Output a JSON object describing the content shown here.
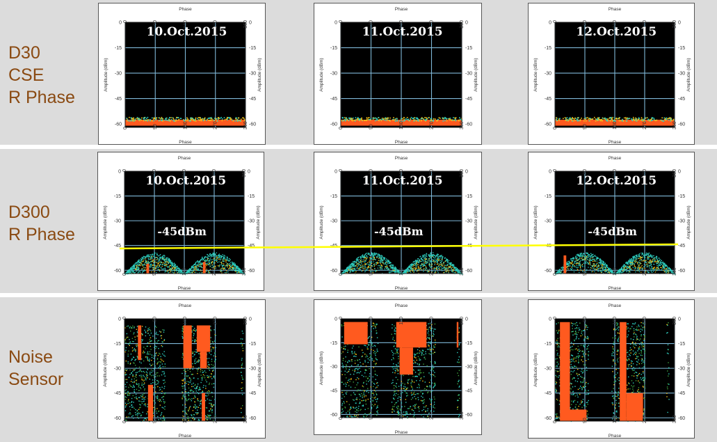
{
  "colors": {
    "band": "#dcdcdc",
    "row_label": "#8a4a12",
    "plot_bg": "#000000",
    "grid": "#7fb8d8",
    "hot": "#ff5a1f",
    "warm": "#f2c21a",
    "cool": "#2fd0c0",
    "reference_line": "#ffff00"
  },
  "rows": [
    {
      "label_lines": [
        "D30",
        "CSE",
        "R Phase"
      ]
    },
    {
      "label_lines": [
        "D300",
        "R Phase"
      ]
    },
    {
      "label_lines": [
        "Noise",
        "Sensor"
      ]
    }
  ],
  "reference_line_label": "-45dBm",
  "chart_data": [
    {
      "type": "scatter",
      "row": 0,
      "col": 0,
      "date": "10.Oct.2015",
      "pattern": "noise_floor",
      "xlabel": "Phase",
      "ylabel": "Amplitude (dBm)",
      "xticks": [
        "0",
        "90",
        "180",
        "270",
        "360"
      ],
      "yticks": [
        "0",
        "-15",
        "-30",
        "-45",
        "-60"
      ],
      "xlim": [
        0,
        360
      ],
      "ylim": [
        -62,
        0
      ],
      "grid": true,
      "noise_floor_dbm": -58
    },
    {
      "type": "scatter",
      "row": 0,
      "col": 1,
      "date": "11.Oct.2015",
      "pattern": "noise_floor",
      "xlabel": "Phase",
      "ylabel": "Amplitude (dBm)",
      "xticks": [
        "0",
        "90",
        "180",
        "270",
        "360"
      ],
      "yticks": [
        "0",
        "-15",
        "-30",
        "-45",
        "-60"
      ],
      "xlim": [
        0,
        360
      ],
      "ylim": [
        -62,
        0
      ],
      "grid": true,
      "noise_floor_dbm": -58
    },
    {
      "type": "scatter",
      "row": 0,
      "col": 2,
      "date": "12.Oct.2015",
      "pattern": "noise_floor",
      "xlabel": "Phase",
      "ylabel": "Amplitude (dBm)",
      "xticks": [
        "0",
        "90",
        "180",
        "270",
        "360"
      ],
      "yticks": [
        "0",
        "-15",
        "-30",
        "-45",
        "-60"
      ],
      "xlim": [
        0,
        360
      ],
      "ylim": [
        -62,
        0
      ],
      "grid": true,
      "noise_floor_dbm": -58
    },
    {
      "type": "scatter",
      "row": 1,
      "col": 0,
      "date": "10.Oct.2015",
      "pattern": "twin_domes",
      "xlabel": "Phase",
      "ylabel": "Amplitude (dBm)",
      "xticks": [
        "0",
        "90",
        "180",
        "270",
        "360"
      ],
      "yticks": [
        "0",
        "-15",
        "-30",
        "-45",
        "-60"
      ],
      "xlim": [
        0,
        360
      ],
      "ylim": [
        -62,
        0
      ],
      "grid": true,
      "dome_peak_dbm": -49,
      "reference_dbm": -45,
      "hot_spots": [
        {
          "phase": 70,
          "top": -56
        },
        {
          "phase": 240,
          "top": -55
        }
      ]
    },
    {
      "type": "scatter",
      "row": 1,
      "col": 1,
      "date": "11.Oct.2015",
      "pattern": "twin_domes",
      "xlabel": "Phase",
      "ylabel": "Amplitude (dBm)",
      "xticks": [
        "0",
        "90",
        "180",
        "270",
        "360"
      ],
      "yticks": [
        "0",
        "-15",
        "-30",
        "-45",
        "-60"
      ],
      "xlim": [
        0,
        360
      ],
      "ylim": [
        -62,
        0
      ],
      "grid": true,
      "dome_peak_dbm": -49,
      "reference_dbm": -45,
      "hot_spots": []
    },
    {
      "type": "scatter",
      "row": 1,
      "col": 2,
      "date": "12.Oct.2015",
      "pattern": "twin_domes",
      "xlabel": "Phase",
      "ylabel": "Amplitude (dBm)",
      "xticks": [
        "0",
        "90",
        "180",
        "270",
        "360"
      ],
      "yticks": [
        "0",
        "-15",
        "-30",
        "-45",
        "-60"
      ],
      "xlim": [
        0,
        360
      ],
      "ylim": [
        -62,
        0
      ],
      "grid": true,
      "dome_peak_dbm": -49,
      "reference_dbm": -45,
      "hot_spots": [
        {
          "phase": 30,
          "top": -51
        }
      ]
    },
    {
      "type": "scatter",
      "row": 2,
      "col": 0,
      "pattern": "vertical_bands",
      "xlabel": "Phase",
      "ylabel": "Amplitude (dBm)",
      "xticks": [
        "0",
        "90",
        "180",
        "270",
        "360"
      ],
      "yticks": [
        "0",
        "-15",
        "-30",
        "-45",
        "-60"
      ],
      "xlim": [
        0,
        360
      ],
      "ylim": [
        -62,
        0
      ],
      "grid": true,
      "bands": [
        {
          "x0": 0,
          "x1": 120,
          "top": -4,
          "density": 0.55
        },
        {
          "x0": 170,
          "x1": 270,
          "top": -4,
          "density": 0.6
        },
        {
          "x0": 345,
          "x1": 352,
          "top": -4,
          "density": 0.5
        }
      ],
      "hot_regions": [
        {
          "x0": 40,
          "x1": 50,
          "y0": -4,
          "y1": -25
        },
        {
          "x0": 70,
          "x1": 85,
          "y0": -40,
          "y1": -62
        },
        {
          "x0": 175,
          "x1": 200,
          "y0": -4,
          "y1": -30
        },
        {
          "x0": 215,
          "x1": 255,
          "y0": -4,
          "y1": -20
        },
        {
          "x0": 225,
          "x1": 245,
          "y0": -20,
          "y1": -30
        },
        {
          "x0": 230,
          "x1": 240,
          "y0": -45,
          "y1": -62
        }
      ]
    },
    {
      "type": "scatter",
      "row": 2,
      "col": 1,
      "pattern": "vertical_bands",
      "xlabel": "Phase",
      "ylabel": "Amplitude (dBm)",
      "xticks": [
        "0",
        "90",
        "180",
        "270",
        "360"
      ],
      "yticks": [
        "0",
        "-15",
        "-30",
        "-45",
        "-60"
      ],
      "xlim": [
        0,
        360
      ],
      "ylim": [
        -62,
        0
      ],
      "grid": true,
      "bands": [
        {
          "x0": 0,
          "x1": 110,
          "top": -2,
          "density": 0.45
        },
        {
          "x0": 150,
          "x1": 280,
          "top": -2,
          "density": 0.5
        },
        {
          "x0": 345,
          "x1": 352,
          "top": -2,
          "density": 0.6
        }
      ],
      "hot_regions": [
        {
          "x0": 10,
          "x1": 80,
          "y0": -2,
          "y1": -16
        },
        {
          "x0": 165,
          "x1": 255,
          "y0": -2,
          "y1": -18
        },
        {
          "x0": 175,
          "x1": 215,
          "y0": -18,
          "y1": -35
        },
        {
          "x0": 345,
          "x1": 350,
          "y0": -2,
          "y1": -18
        }
      ]
    },
    {
      "type": "scatter",
      "row": 2,
      "col": 2,
      "pattern": "vertical_bands",
      "xlabel": "Phase",
      "ylabel": "Amplitude (dBm)",
      "xticks": [
        "0",
        "90",
        "180",
        "270",
        "360"
      ],
      "yticks": [
        "0",
        "-15",
        "-30",
        "-45",
        "-60"
      ],
      "xlim": [
        0,
        360
      ],
      "ylim": [
        -62,
        0
      ],
      "grid": true,
      "bands": [
        {
          "x0": 0,
          "x1": 100,
          "top": -2,
          "density": 0.55
        },
        {
          "x0": 170,
          "x1": 270,
          "top": -2,
          "density": 0.55
        },
        {
          "x0": 335,
          "x1": 342,
          "top": -2,
          "density": 0.4
        }
      ],
      "hot_regions": [
        {
          "x0": 15,
          "x1": 45,
          "y0": -2,
          "y1": -62
        },
        {
          "x0": 45,
          "x1": 95,
          "y0": -55,
          "y1": -62
        },
        {
          "x0": 195,
          "x1": 215,
          "y0": -2,
          "y1": -62
        },
        {
          "x0": 215,
          "x1": 265,
          "y0": -45,
          "y1": -62
        }
      ]
    }
  ]
}
